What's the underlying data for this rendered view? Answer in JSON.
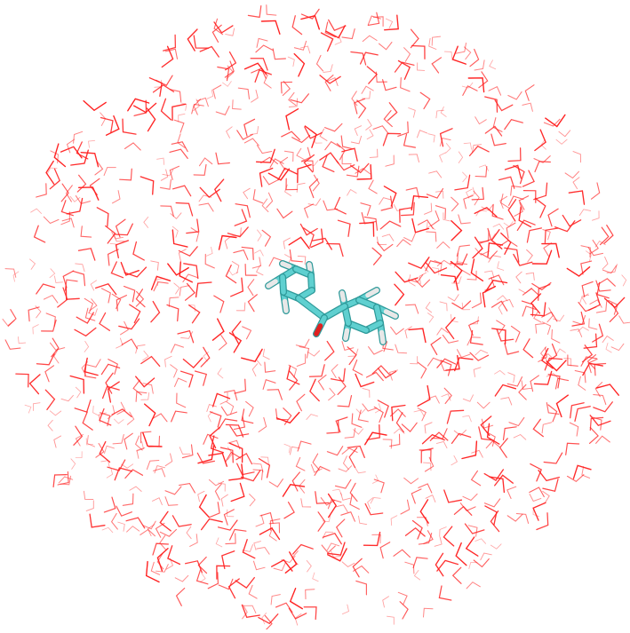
{
  "scene": {
    "kind": "molecular-render",
    "molecule": "benzophenone",
    "solvent": "water",
    "representation": {
      "solute": "licorice",
      "solvent": "lines"
    },
    "colors": {
      "background": "#ffffff",
      "carbon": "#5fd0d0",
      "carbon_shade": "#2f9a9a",
      "hydrogen": "#e8e8e8",
      "oxygen": "#e02020",
      "water": "#ff2020"
    }
  }
}
